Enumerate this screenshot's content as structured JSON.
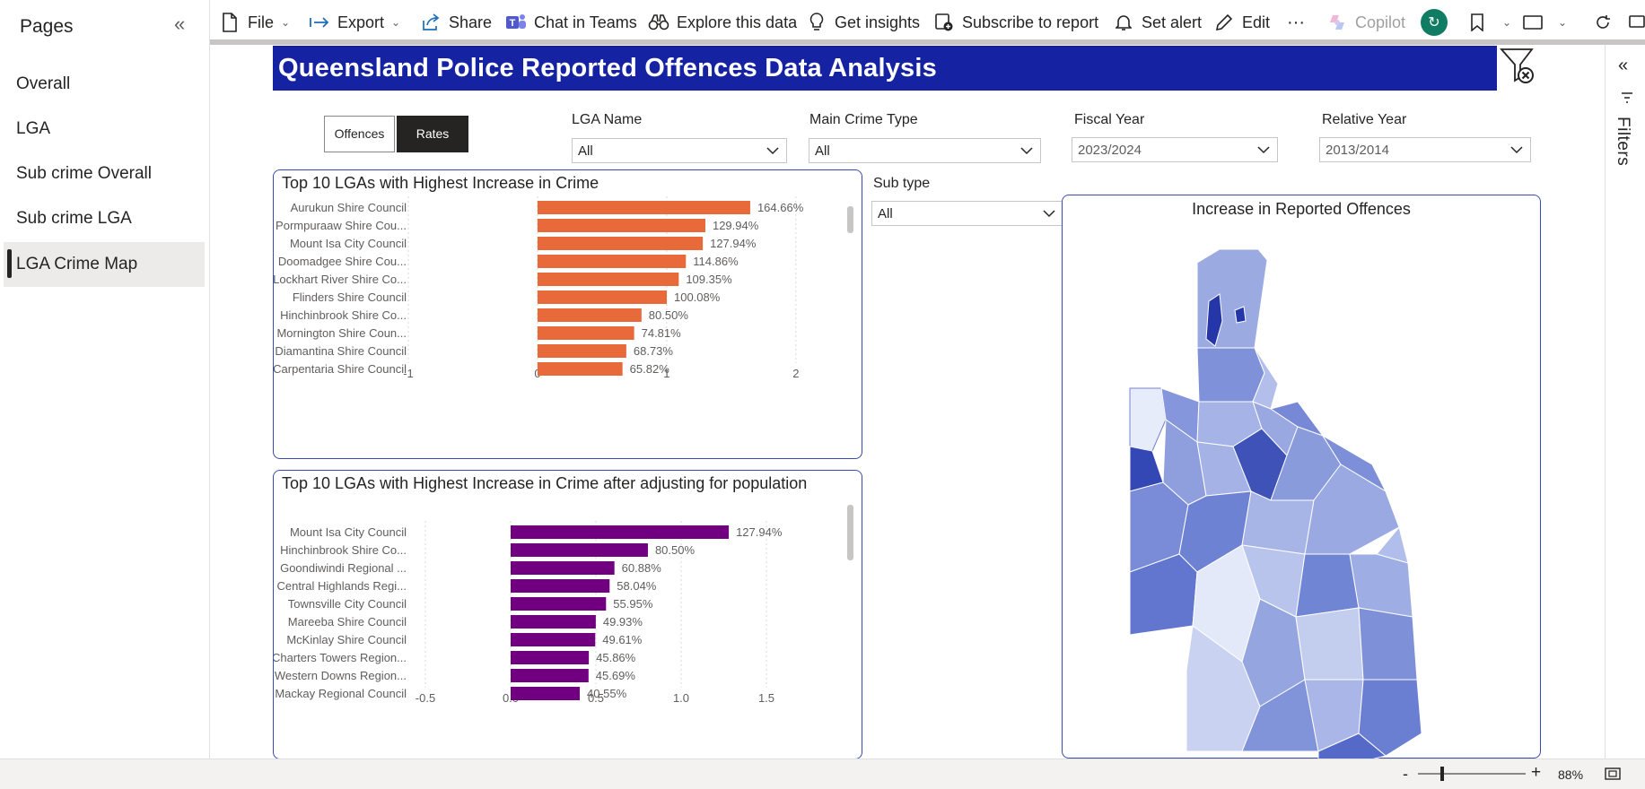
{
  "pages_panel": {
    "title": "Pages",
    "collapse_icon": "«",
    "items": [
      {
        "label": "Overall"
      },
      {
        "label": "LGA"
      },
      {
        "label": "Sub crime Overall"
      },
      {
        "label": "Sub crime LGA"
      },
      {
        "label": "LGA Crime Map"
      }
    ],
    "active_index": 4
  },
  "toolbar": {
    "file": "File",
    "export": "Export",
    "share": "Share",
    "chat_in_teams": "Chat in Teams",
    "explore": "Explore this data",
    "insights": "Get insights",
    "subscribe": "Subscribe to report",
    "alert": "Set alert",
    "edit": "Edit",
    "more": "···",
    "copilot": "Copilot",
    "colors": {
      "teams": "#5059c9",
      "sync": "#107c63",
      "copilot": "#a19f9d"
    }
  },
  "report": {
    "title": "Queensland Police Reported Offences Data Analysis",
    "title_bg": "#1523a3"
  },
  "toggle": {
    "offences": "Offences",
    "rates": "Rates",
    "selected": "Rates"
  },
  "slicers": {
    "lga_name": {
      "label": "LGA Name",
      "value": "All"
    },
    "main_crime_type": {
      "label": "Main Crime Type",
      "value": "All"
    },
    "fiscal_year": {
      "label": "Fiscal Year",
      "value": "2023/2024"
    },
    "relative_year": {
      "label": "Relative Year",
      "value": "2013/2014"
    },
    "sub_type": {
      "label": "Sub type",
      "value": "All"
    }
  },
  "map": {
    "title": "Increase in Reported Offences"
  },
  "chart_data": [
    {
      "type": "bar",
      "orientation": "horizontal",
      "title": "Top 10 LGAs with Highest Increase in Crime",
      "categories": [
        "Aurukun Shire Council",
        "Pormpuraaw Shire Cou...",
        "Mount Isa City Council",
        "Doomadgee Shire Cou...",
        "Lockhart River Shire Co...",
        "Flinders Shire Council",
        "Hinchinbrook Shire Co...",
        "Mornington Shire Coun...",
        "Diamantina Shire Council",
        "Carpentaria Shire Council"
      ],
      "values": [
        1.6466,
        1.2994,
        1.2794,
        1.1486,
        1.0935,
        1.0008,
        0.805,
        0.7481,
        0.6873,
        0.6582
      ],
      "data_labels": [
        "164.66%",
        "129.94%",
        "127.94%",
        "114.86%",
        "109.35%",
        "100.08%",
        "80.50%",
        "74.81%",
        "68.73%",
        "65.82%"
      ],
      "xlim": [
        -1,
        2.3
      ],
      "xticks": [
        -1,
        0,
        1,
        2
      ],
      "xtick_labels": [
        "-1",
        "0",
        "1",
        "2"
      ],
      "color": "#e8693a",
      "grid": true
    },
    {
      "type": "bar",
      "orientation": "horizontal",
      "title": "Top 10 LGAs with Highest Increase in Crime after adjusting for population",
      "categories": [
        "Mount Isa City Council",
        "Hinchinbrook Shire Co...",
        "Goondiwindi Regional ...",
        "Central Highlands Regi...",
        "Townsville City Council",
        "Mareeba Shire Council",
        "McKinlay Shire Council",
        "Charters Towers Region...",
        "Western Downs Region...",
        "Mackay Regional Council"
      ],
      "values": [
        1.2794,
        0.805,
        0.6088,
        0.5804,
        0.5595,
        0.4993,
        0.4961,
        0.4586,
        0.4569,
        0.4055
      ],
      "data_labels": [
        "127.94%",
        "80.50%",
        "60.88%",
        "58.04%",
        "55.95%",
        "49.93%",
        "49.61%",
        "45.86%",
        "45.69%",
        "40.55%"
      ],
      "xlim": [
        -0.6,
        1.9
      ],
      "xticks": [
        -0.5,
        0.0,
        0.5,
        1.0,
        1.5
      ],
      "xtick_labels": [
        "-0.5",
        "0.0",
        "0.5",
        "1.0",
        "1.5"
      ],
      "color": "#700080",
      "grid": true
    }
  ],
  "filters_pane": {
    "label": "Filters",
    "collapse_icon": "«"
  },
  "statusbar": {
    "minus": "-",
    "plus": "+",
    "zoom": "88%",
    "zoom_level": 0.88
  }
}
